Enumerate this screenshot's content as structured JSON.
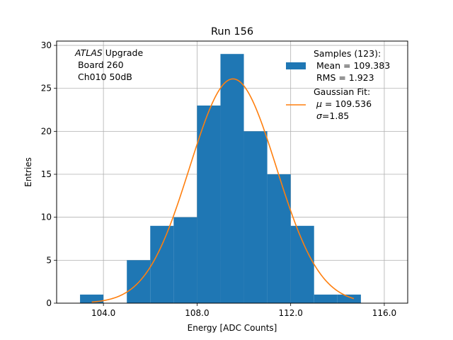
{
  "chart_data": {
    "type": "bar",
    "title": "Run 156",
    "xlabel": "Energy [ADC Counts]",
    "ylabel": "Entries",
    "xlim": [
      102.0,
      117.0
    ],
    "ylim": [
      0,
      30.5
    ],
    "xticks": [
      104,
      108,
      112,
      116
    ],
    "xtick_labels": [
      "104.0",
      "108.0",
      "112.0",
      "116.0"
    ],
    "yticks": [
      0,
      5,
      10,
      15,
      20,
      25,
      30
    ],
    "ytick_labels": [
      "0",
      "5",
      "10",
      "15",
      "20",
      "25",
      "30"
    ],
    "grid": true,
    "histogram": {
      "name": "Samples (123):",
      "color": "#1f77b4",
      "bins": [
        {
          "x0": 103,
          "x1": 104,
          "count": 1
        },
        {
          "x0": 104,
          "x1": 105,
          "count": 0
        },
        {
          "x0": 105,
          "x1": 106,
          "count": 5
        },
        {
          "x0": 106,
          "x1": 107,
          "count": 9
        },
        {
          "x0": 107,
          "x1": 108,
          "count": 10
        },
        {
          "x0": 108,
          "x1": 109,
          "count": 23
        },
        {
          "x0": 109,
          "x1": 110,
          "count": 29
        },
        {
          "x0": 110,
          "x1": 111,
          "count": 20
        },
        {
          "x0": 111,
          "x1": 112,
          "count": 15
        },
        {
          "x0": 112,
          "x1": 113,
          "count": 9
        },
        {
          "x0": 113,
          "x1": 114,
          "count": 1
        },
        {
          "x0": 114,
          "x1": 115,
          "count": 1
        }
      ]
    },
    "fit": {
      "name": "Gaussian Fit:",
      "color": "#ff7f0e",
      "mu": 109.536,
      "sigma": 1.85,
      "amplitude": 26.1,
      "x_range": [
        103.5,
        114.7
      ]
    },
    "annotation": {
      "atlas": "ATLAS",
      "upgrade": " Upgrade",
      "board": " Board 260",
      "channel": " Ch010 50dB"
    },
    "legend": {
      "placement": "top-right",
      "samples_label": "Samples (123):",
      "samples_mean": " Mean = 109.383",
      "samples_rms": " RMS = 1.923",
      "fit_label": "Gaussian Fit:",
      "fit_mu_symbol": "μ",
      "fit_mu_value": " = 109.536",
      "fit_sigma_symbol": "σ",
      "fit_sigma_value": "=1.85"
    }
  }
}
